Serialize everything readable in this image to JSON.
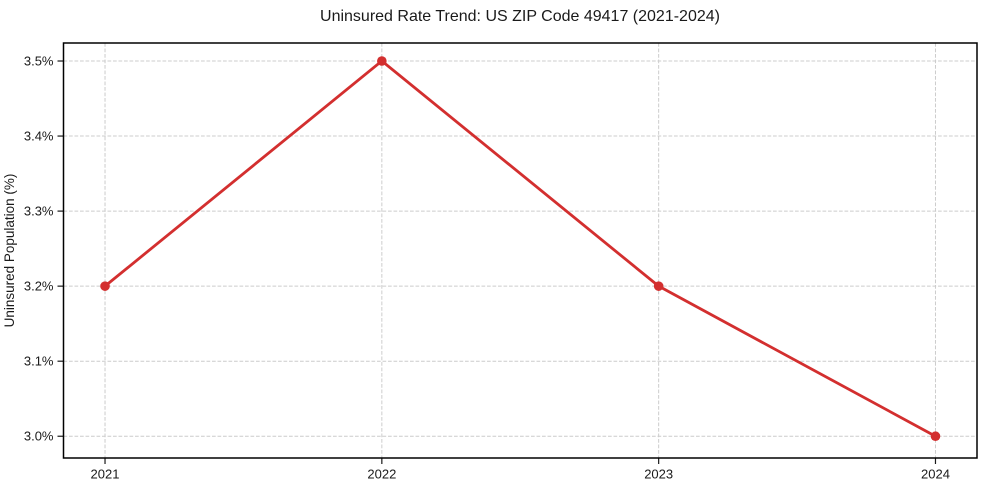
{
  "chart_data": {
    "type": "line",
    "title": "Uninsured Rate Trend: US ZIP Code 49417 (2021-2024)",
    "xlabel": "",
    "ylabel": "Uninsured Population (%)",
    "categories": [
      "2021",
      "2022",
      "2023",
      "2024"
    ],
    "series": [
      {
        "name": "Uninsured rate",
        "values": [
          3.2,
          3.5,
          3.2,
          3.0
        ]
      }
    ],
    "yticks": [
      3.0,
      3.1,
      3.2,
      3.3,
      3.4,
      3.5
    ],
    "ytick_labels": [
      "3.0%",
      "3.1%",
      "3.2%",
      "3.3%",
      "3.4%",
      "3.5%"
    ],
    "ylim": [
      2.971,
      3.524
    ],
    "xlim": [
      -0.15,
      3.15
    ],
    "grid": true,
    "legend_position": "none",
    "colors": {
      "line": "#d32f2f",
      "marker": "#d32f2f",
      "grid": "#cccccc",
      "plot_border": "#000000",
      "text": "#1a1a1a",
      "background": "#ffffff"
    }
  }
}
